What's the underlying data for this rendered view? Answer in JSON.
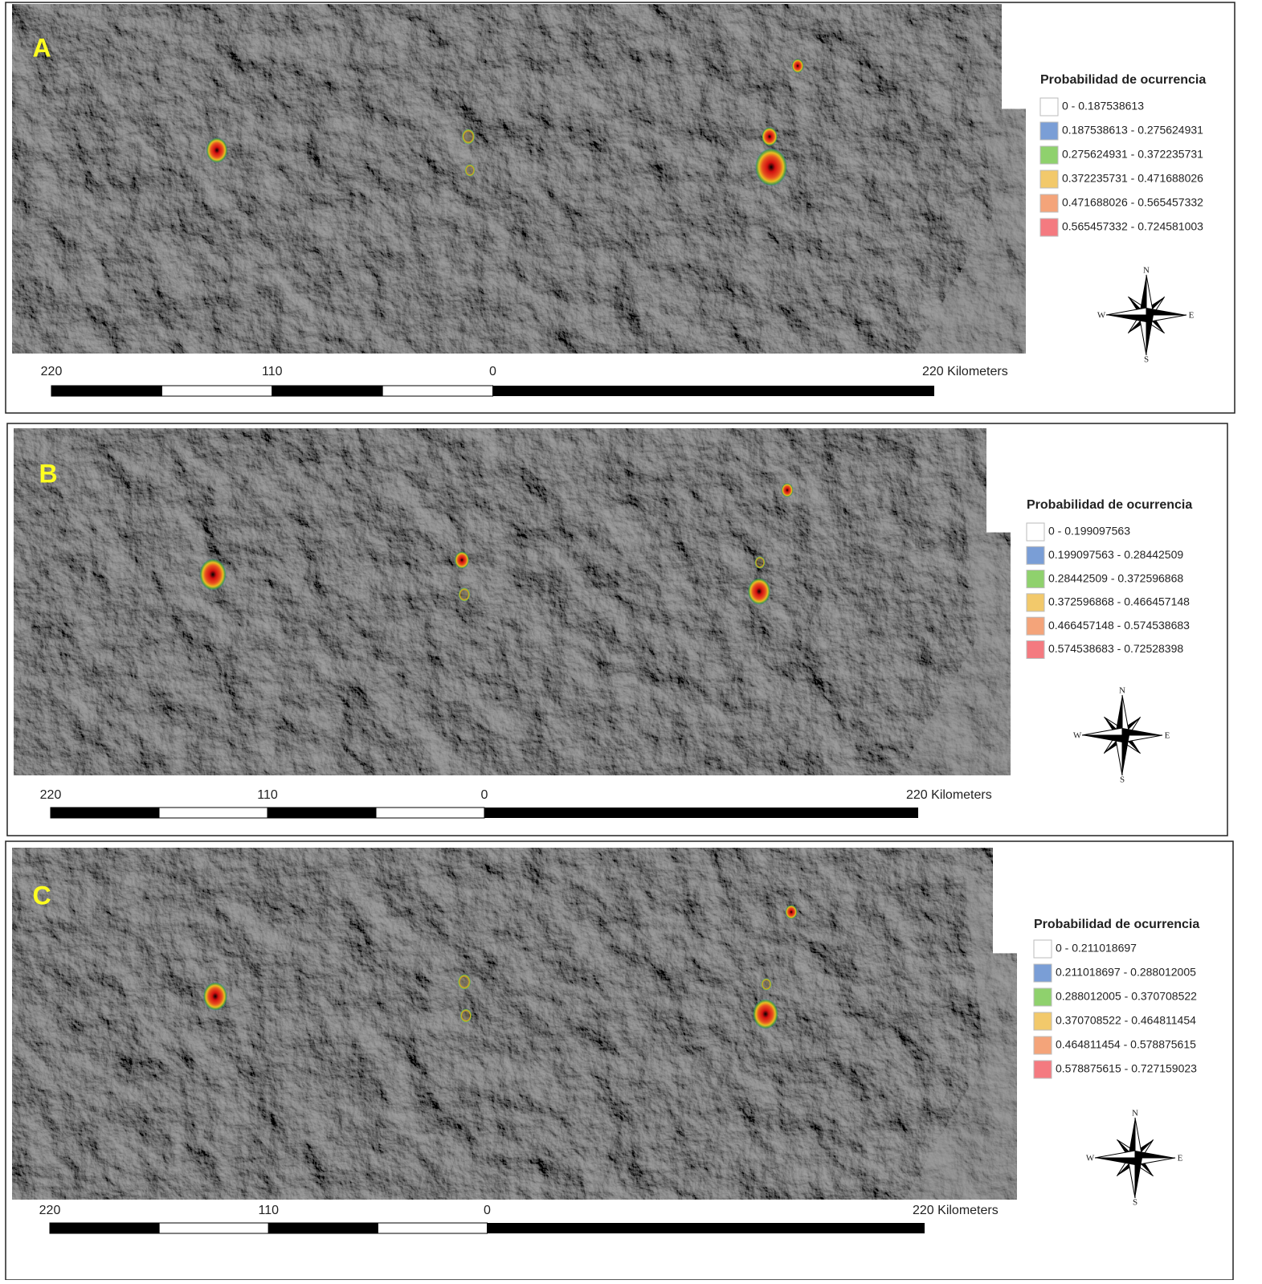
{
  "panels": [
    {
      "label": "A",
      "legend": {
        "title": "Probabilidad de ocurrencia",
        "items": [
          {
            "label": "0 - 0.187538613",
            "color": "#ffffff"
          },
          {
            "label": "0.187538613 - 0.275624931",
            "color": "#7a9ed6"
          },
          {
            "label": "0.275624931 - 0.372235731",
            "color": "#8fd16d"
          },
          {
            "label": "0.372235731 - 0.471688026",
            "color": "#f2c96b"
          },
          {
            "label": "0.471688026 - 0.565457332",
            "color": "#f4a47a"
          },
          {
            "label": "0.565457332 - 0.724581003",
            "color": "#f47a80"
          }
        ]
      },
      "scale": {
        "labels": [
          "220",
          "110",
          "0",
          "220 Kilometers"
        ]
      },
      "compass": {
        "n": "N",
        "e": "E",
        "s": "S",
        "w": "W"
      }
    },
    {
      "label": "B",
      "legend": {
        "title": "Probabilidad de ocurrencia",
        "items": [
          {
            "label": "0 - 0.199097563",
            "color": "#ffffff"
          },
          {
            "label": "0.199097563 - 0.28442509",
            "color": "#7a9ed6"
          },
          {
            "label": "0.28442509 - 0.372596868",
            "color": "#8fd16d"
          },
          {
            "label": "0.372596868 - 0.466457148",
            "color": "#f2c96b"
          },
          {
            "label": "0.466457148 - 0.574538683",
            "color": "#f4a47a"
          },
          {
            "label": "0.574538683 - 0.72528398",
            "color": "#f47a80"
          }
        ]
      },
      "scale": {
        "labels": [
          "220",
          "110",
          "0",
          "220 Kilometers"
        ]
      },
      "compass": {
        "n": "N",
        "e": "E",
        "s": "S",
        "w": "W"
      }
    },
    {
      "label": "C",
      "legend": {
        "title": "Probabilidad de ocurrencia",
        "items": [
          {
            "label": "0 - 0.211018697",
            "color": "#ffffff"
          },
          {
            "label": "0.211018697 - 0.288012005",
            "color": "#7a9ed6"
          },
          {
            "label": "0.288012005 - 0.370708522",
            "color": "#8fd16d"
          },
          {
            "label": "0.370708522 - 0.464811454",
            "color": "#f2c96b"
          },
          {
            "label": "0.464811454 - 0.578875615",
            "color": "#f4a47a"
          },
          {
            "label": "0.578875615 - 0.727159023",
            "color": "#f47a80"
          }
        ]
      },
      "scale": {
        "labels": [
          "220",
          "110",
          "0",
          "220 Kilometers"
        ]
      },
      "compass": {
        "n": "N",
        "e": "E",
        "s": "S",
        "w": "W"
      }
    }
  ]
}
